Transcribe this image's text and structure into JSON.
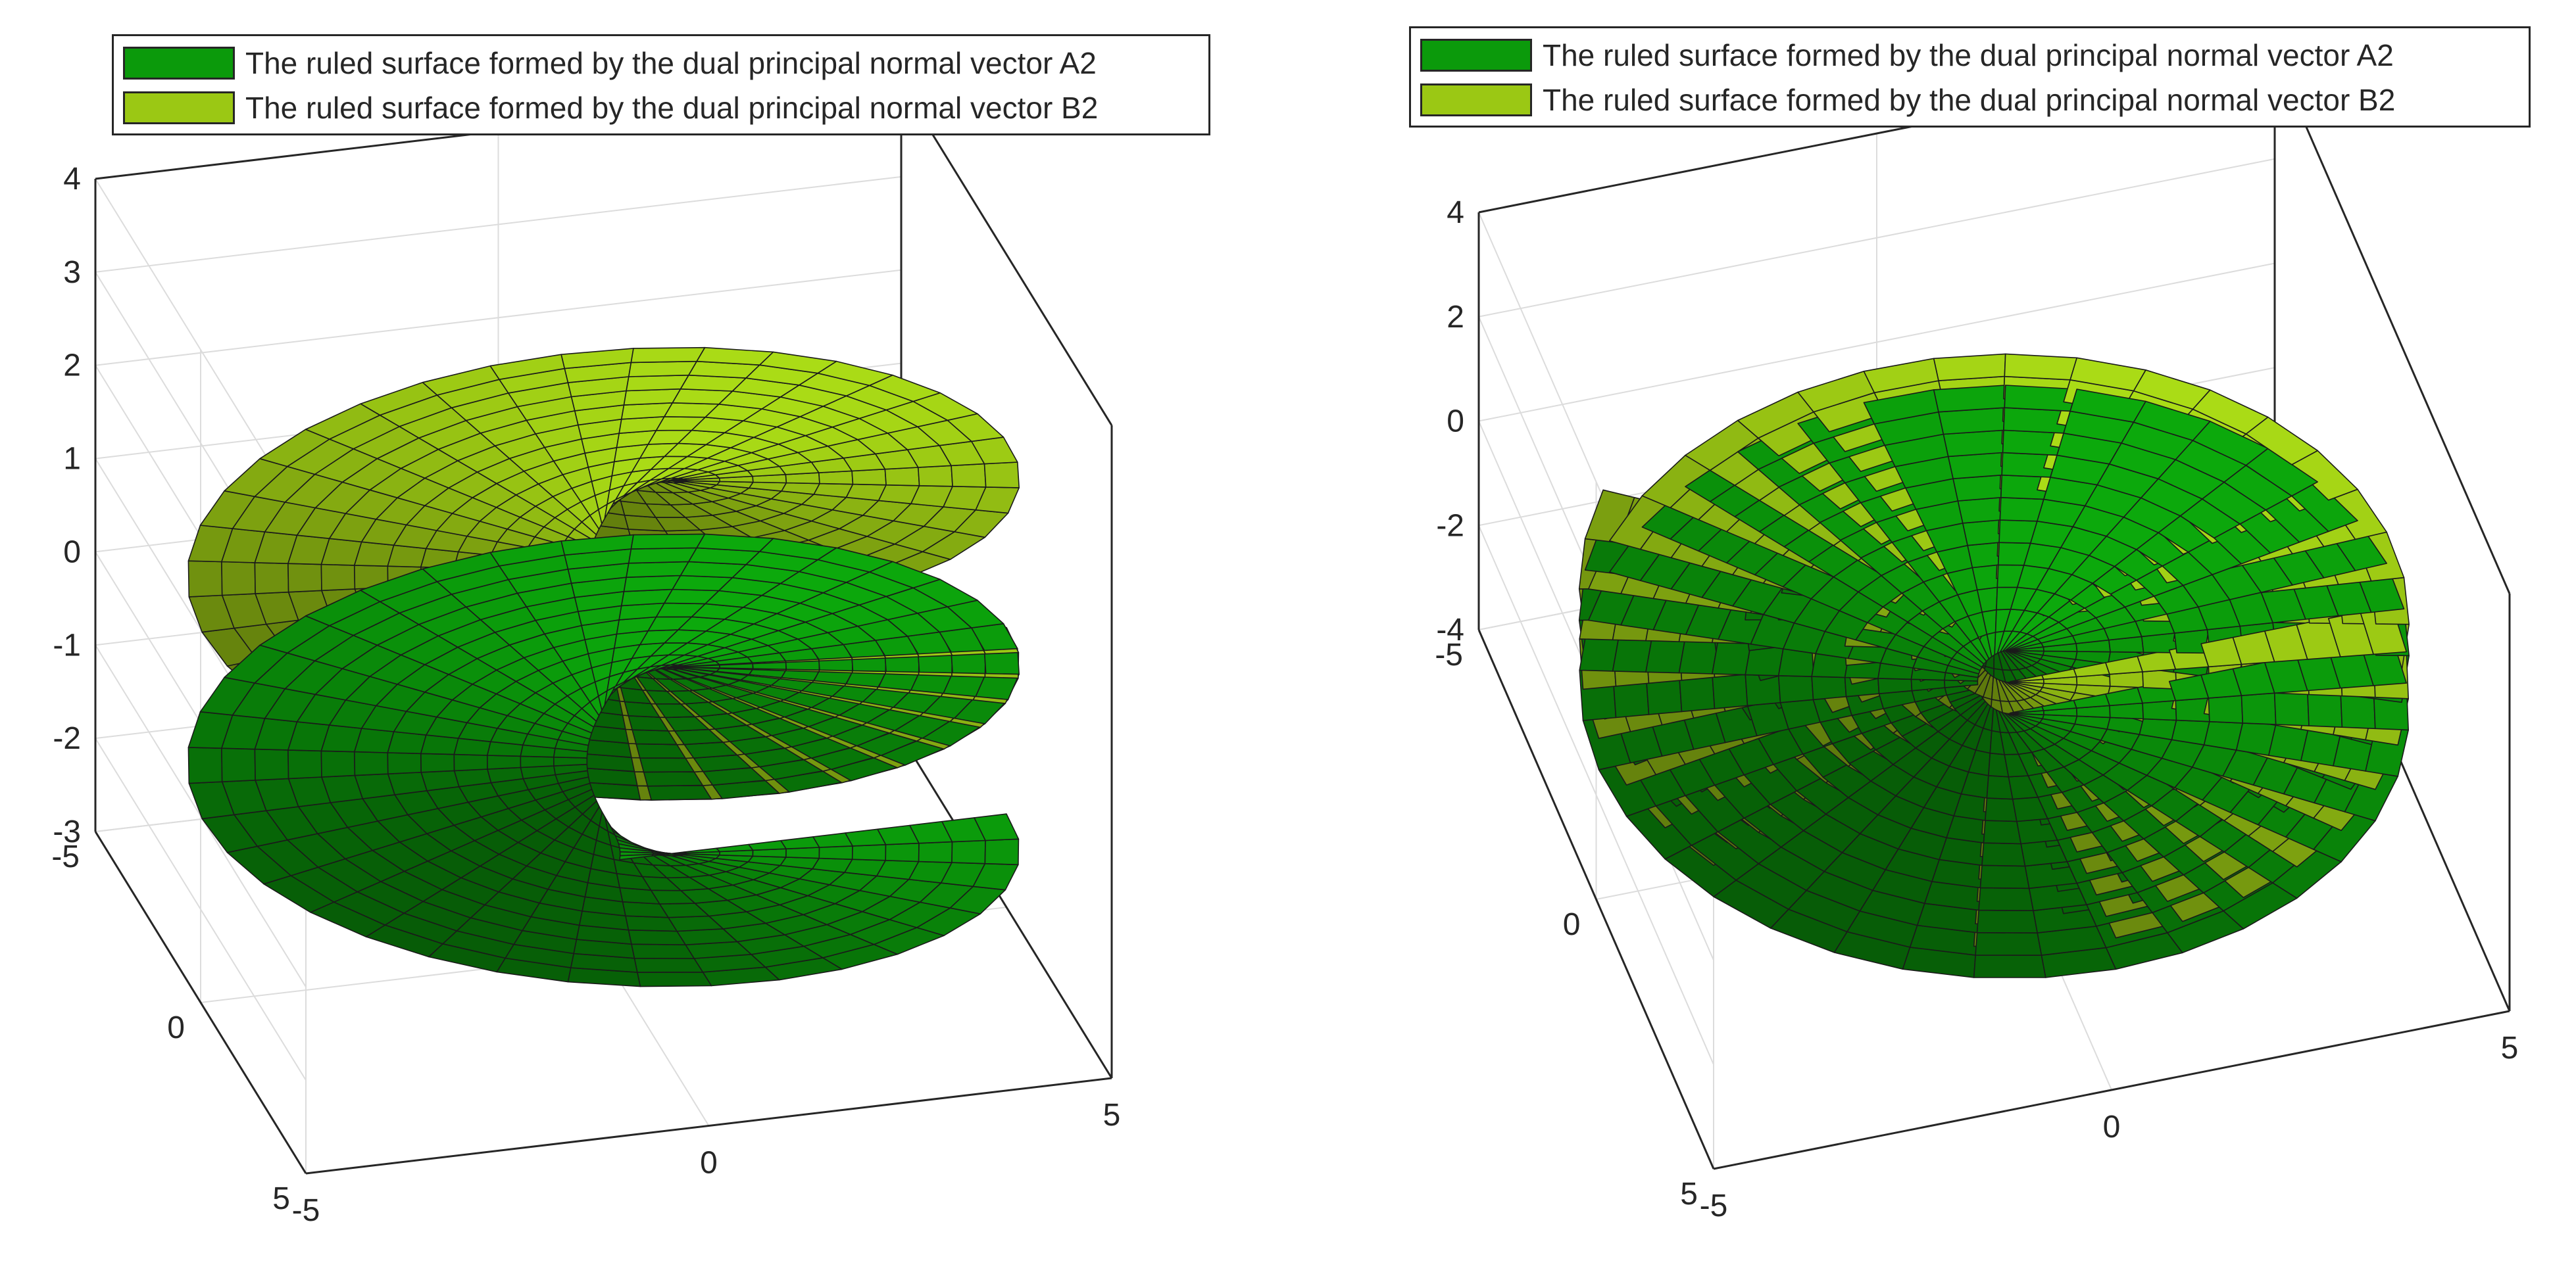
{
  "colors": {
    "dark_green": "#0B9A0B",
    "light_green": "#9BC814",
    "edge": "#1a1a1a",
    "axis": "#262626",
    "grid": "#dcdcdc"
  },
  "chart_data": [
    {
      "type": "surface",
      "title": "",
      "xlabel": "",
      "ylabel": "",
      "zlabel": "",
      "xlim": [
        -5,
        5
      ],
      "ylim": [
        -5,
        5
      ],
      "zlim": [
        -3,
        4
      ],
      "x_ticks": [
        "-5",
        "0",
        "5"
      ],
      "y_ticks": [
        "-5",
        "0",
        "5"
      ],
      "z_ticks": [
        "-3",
        "-2",
        "-1",
        "0",
        "1",
        "2",
        "3",
        "4"
      ],
      "grid": true,
      "legend_position": "top",
      "series": [
        {
          "name": "The ruled surface formed by the dual principal normal vector A2",
          "color": "#0B9A0B",
          "inner_radius": 0.2,
          "outer_radius": 5.0,
          "z_start": -2.0,
          "pitch": 2.0,
          "turns": 1.3
        },
        {
          "name": "The ruled surface formed by the dual principal normal vector B2",
          "color": "#9BC814",
          "inner_radius": 0.2,
          "outer_radius": 5.0,
          "z_start": 0.0,
          "pitch": 2.0,
          "turns": 1.3
        }
      ]
    },
    {
      "type": "surface",
      "title": "",
      "xlabel": "",
      "ylabel": "",
      "zlabel": "",
      "xlim": [
        -5,
        5
      ],
      "ylim": [
        -5,
        5
      ],
      "zlim": [
        -4,
        4
      ],
      "x_ticks": [
        "-5",
        "0",
        "5"
      ],
      "y_ticks": [
        "-5",
        "0",
        "5"
      ],
      "z_ticks": [
        "-4",
        "-2",
        "0",
        "2",
        "4"
      ],
      "grid": true,
      "legend_position": "top",
      "series": [
        {
          "name": "The ruled surface formed by the dual principal normal vector A2",
          "color": "#0B9A0B",
          "inner_radius": 0.2,
          "outer_radius": 5.0,
          "z_start": -2.0,
          "pitch": 1.2,
          "turns": 1.6
        },
        {
          "name": "The ruled surface formed by the dual principal normal vector B2",
          "color": "#9BC814",
          "inner_radius": 0.2,
          "outer_radius": 5.0,
          "z_start": -1.4,
          "pitch": 1.2,
          "turns": 1.6
        }
      ]
    }
  ]
}
